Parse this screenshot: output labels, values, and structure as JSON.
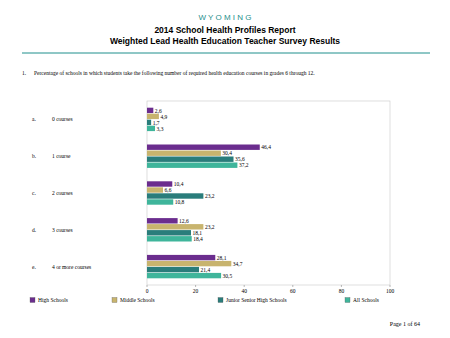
{
  "header": {
    "state": "W Y O M I N G",
    "title": "2014 School Health Profiles Report",
    "subtitle": "Weighted Lead Health Education Teacher Survey Results"
  },
  "chart_data": {
    "type": "bar",
    "orientation": "horizontal",
    "title": "1. Percentage of schools in which students take the following number of required health education courses in grades 6 through 12.",
    "categories": [
      "a. 0 courses",
      "b. 1 course",
      "c. 2 courses",
      "d. 3 courses",
      "e. 4 or more courses"
    ],
    "series": [
      {
        "name": "High Schools",
        "color": "#6b2d8e",
        "values": [
          2.6,
          46.4,
          10.4,
          12.6,
          28.1
        ],
        "value_labels": [
          "2,6",
          "46,4",
          "10,4",
          "12,6",
          "28,1"
        ]
      },
      {
        "name": "Middle Schools",
        "color": "#c8b46e",
        "values": [
          4.9,
          30.4,
          6.6,
          23.2,
          34.7
        ],
        "value_labels": [
          "4,9",
          "30,4",
          "6,6",
          "23,2",
          "34,7"
        ]
      },
      {
        "name": "Junior Senior High Schools",
        "color": "#2a7d7b",
        "values": [
          1.7,
          35.6,
          23.2,
          18.1,
          21.4
        ],
        "value_labels": [
          "1,7",
          "35,6",
          "23,2",
          "18,1",
          "21,4"
        ]
      },
      {
        "name": "All Schools",
        "color": "#3fb59b",
        "values": [
          3.3,
          37.2,
          10.8,
          18.4,
          30.5
        ],
        "value_labels": [
          "3,3",
          "37,2",
          "10,8",
          "18,4",
          "30,5"
        ]
      }
    ],
    "xlim": [
      0,
      100
    ],
    "xticks": [
      0,
      20,
      40,
      60,
      80,
      100
    ],
    "grid": false,
    "data_labels": true,
    "legend": "bottom"
  },
  "footer": "Page 1 of 64"
}
